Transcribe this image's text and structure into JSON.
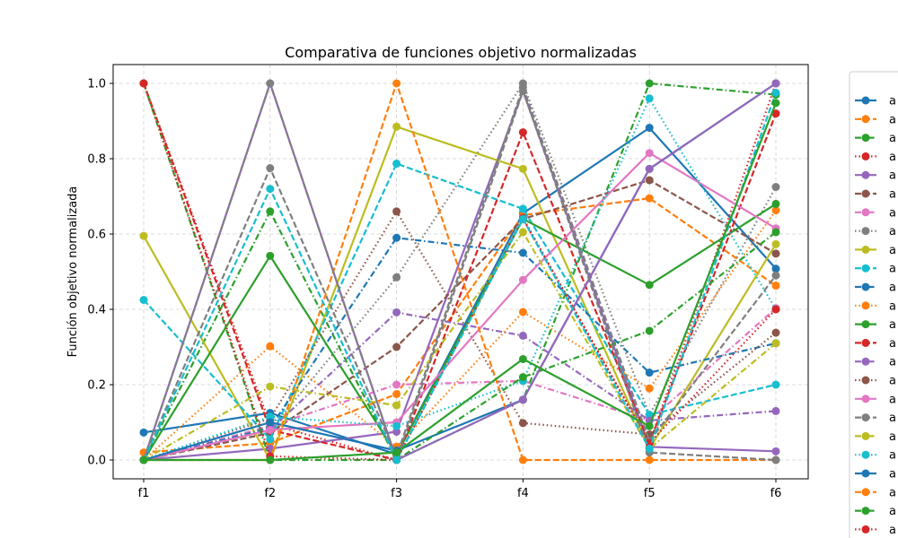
{
  "chart_data": {
    "type": "line",
    "title": "Comparativa de funciones objetivo normalizadas",
    "xlabel": "",
    "ylabel": "Función objetivo normalizada",
    "categories": [
      "f1",
      "f2",
      "f3",
      "f4",
      "f5",
      "f6"
    ],
    "yticks": [
      "0.0",
      "0.2",
      "0.4",
      "0.6",
      "0.8",
      "1.0"
    ],
    "ylim": [
      -0.05,
      1.05
    ],
    "grid": true,
    "legend_position": "right, clipped by page edge",
    "series": [
      {
        "name": "a",
        "color": "#1f77b4",
        "style": "solid",
        "values": [
          0.073,
          0.125,
          0.015,
          0.655,
          0.882,
          0.508
        ]
      },
      {
        "name": "a",
        "color": "#ff7f0e",
        "style": "dashed",
        "values": [
          0.02,
          0.045,
          0.175,
          0.65,
          0.695,
          0.463
        ]
      },
      {
        "name": "a",
        "color": "#2ca02c",
        "style": "dashdot",
        "values": [
          0.0,
          0.66,
          0.0,
          0.16,
          1.0,
          0.97
        ]
      },
      {
        "name": "a",
        "color": "#d62728",
        "style": "dotted",
        "values": [
          1.0,
          0.095,
          0.0,
          0.643,
          0.045,
          1.0
        ]
      },
      {
        "name": "a",
        "color": "#9467bd",
        "style": "solid",
        "values": [
          0.0,
          0.03,
          0.075,
          0.98,
          0.035,
          0.023
        ]
      },
      {
        "name": "a",
        "color": "#8c564b",
        "style": "dashed",
        "values": [
          0.0,
          0.072,
          0.3,
          0.64,
          0.743,
          0.548
        ]
      },
      {
        "name": "a",
        "color": "#e377c2",
        "style": "dashdot",
        "values": [
          0.0,
          0.09,
          0.2,
          0.21,
          0.105,
          0.403
        ]
      },
      {
        "name": "a",
        "color": "#7f7f7f",
        "style": "dotted",
        "values": [
          0.0,
          0.08,
          0.485,
          1.0,
          0.12,
          0.725
        ]
      },
      {
        "name": "a",
        "color": "#bcbd22",
        "style": "solid",
        "values": [
          0.595,
          0.0,
          0.885,
          0.773,
          0.03,
          0.573
        ]
      },
      {
        "name": "a",
        "color": "#17becf",
        "style": "dashed",
        "values": [
          0.425,
          0.055,
          0.787,
          0.667,
          0.12,
          0.2
        ]
      },
      {
        "name": "a",
        "color": "#1f77b4",
        "style": "dashdot",
        "values": [
          0.0,
          0.085,
          0.59,
          0.55,
          0.232,
          0.31
        ]
      },
      {
        "name": "a",
        "color": "#ff7f0e",
        "style": "dotted",
        "values": [
          0.0,
          0.302,
          0.035,
          0.393,
          0.19,
          0.663
        ]
      },
      {
        "name": "a",
        "color": "#2ca02c",
        "style": "solid",
        "values": [
          0.0,
          0.542,
          0.015,
          0.64,
          0.465,
          0.68
        ]
      },
      {
        "name": "a",
        "color": "#d62728",
        "style": "dashed",
        "values": [
          1.0,
          0.08,
          0.0,
          0.87,
          0.045,
          0.92
        ]
      },
      {
        "name": "a",
        "color": "#9467bd",
        "style": "dashdot",
        "values": [
          0.0,
          0.08,
          0.392,
          0.33,
          0.105,
          0.13
        ]
      },
      {
        "name": "a",
        "color": "#8c564b",
        "style": "dotted",
        "values": [
          0.0,
          0.11,
          0.66,
          0.098,
          0.068,
          0.338
        ]
      },
      {
        "name": "a",
        "color": "#e377c2",
        "style": "solid",
        "values": [
          0.0,
          0.08,
          0.1,
          0.478,
          0.815,
          0.615
        ]
      },
      {
        "name": "a",
        "color": "#7f7f7f",
        "style": "dashed",
        "values": [
          0.0,
          0.775,
          0.01,
          0.99,
          0.05,
          0.49
        ]
      },
      {
        "name": "a",
        "color": "#bcbd22",
        "style": "dashdot",
        "values": [
          0.0,
          0.195,
          0.145,
          0.605,
          0.03,
          0.31
        ]
      },
      {
        "name": "a",
        "color": "#17becf",
        "style": "dotted",
        "values": [
          0.0,
          0.115,
          0.09,
          0.21,
          0.96,
          0.4
        ]
      },
      {
        "name": "a",
        "color": "#1f77b4",
        "style": "solid",
        "values": [
          0.0,
          0.1,
          0.025,
          0.16,
          0.773,
          1.0
        ]
      },
      {
        "name": "a",
        "color": "#ff7f0e",
        "style": "dashed",
        "values": [
          0.0,
          0.0,
          1.0,
          0.0,
          0.0,
          0.0
        ]
      },
      {
        "name": "a",
        "color": "#2ca02c",
        "style": "dashdot",
        "values": [
          1.0,
          0.0,
          0.0,
          0.22,
          0.343,
          0.605
        ]
      },
      {
        "name": "a",
        "color": "#d62728",
        "style": "dotted",
        "values": [
          1.0,
          0.01,
          0.0,
          0.64,
          0.045,
          0.4
        ]
      },
      {
        "name": "a",
        "color": "#9467bd",
        "style": "solid",
        "values": [
          0.0,
          1.0,
          0.0,
          0.16,
          0.773,
          1.0
        ]
      },
      {
        "name": "a",
        "color": "#7f7f7f",
        "style": "dashed",
        "values": [
          0.0,
          1.0,
          0.0,
          0.98,
          0.02,
          0.0
        ]
      },
      {
        "name": "a",
        "color": "#17becf",
        "style": "dashed",
        "values": [
          0.0,
          0.72,
          0.0,
          0.64,
          0.03,
          0.975
        ]
      },
      {
        "name": "a",
        "color": "#2ca02c",
        "style": "solid",
        "values": [
          0.0,
          0.0,
          0.02,
          0.268,
          0.09,
          0.948
        ]
      }
    ]
  }
}
